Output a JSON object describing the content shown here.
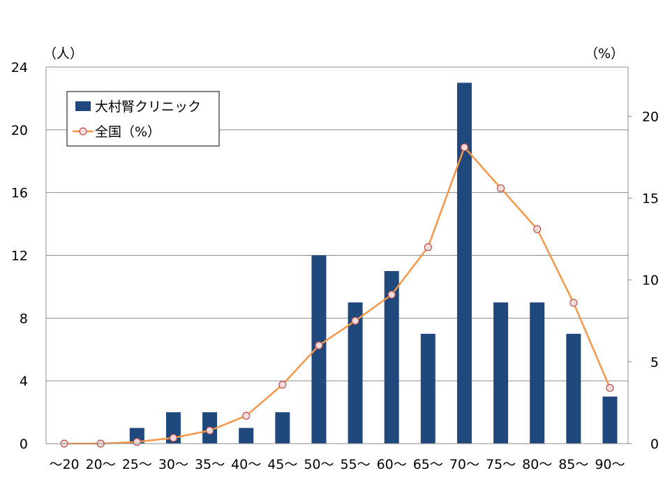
{
  "chart_data": {
    "type": "bar",
    "categories": [
      "～20",
      "20～",
      "25～",
      "30～",
      "35～",
      "40～",
      "45～",
      "50～",
      "55～",
      "60～",
      "65～",
      "70～",
      "75～",
      "80～",
      "85～",
      "90～"
    ],
    "series": [
      {
        "name": "大村腎クリニック",
        "type": "bar",
        "axis": "left",
        "color": "#1f497d",
        "values": [
          0,
          0,
          1,
          2,
          2,
          1,
          2,
          12,
          9,
          11,
          7,
          23,
          9,
          9,
          7,
          3
        ]
      },
      {
        "name": "全国（%）",
        "type": "line",
        "axis": "right",
        "color": "#f79646",
        "marker_fill": "#f2dcdb",
        "values": [
          0.0,
          0.0,
          0.1,
          0.35,
          0.8,
          1.7,
          3.6,
          6.0,
          7.5,
          9.1,
          12.0,
          18.1,
          15.6,
          13.1,
          8.6,
          3.4
        ]
      }
    ],
    "y_left": {
      "unit_label": "（人）",
      "ylim": [
        0,
        24
      ],
      "ticks": [
        0,
        4,
        8,
        12,
        16,
        20,
        24
      ]
    },
    "y_right": {
      "unit_label": "（%）",
      "ylim": [
        0,
        23
      ],
      "ticks": [
        0,
        5,
        10,
        15,
        20
      ]
    },
    "grid": true,
    "legend_position": "top-left"
  }
}
